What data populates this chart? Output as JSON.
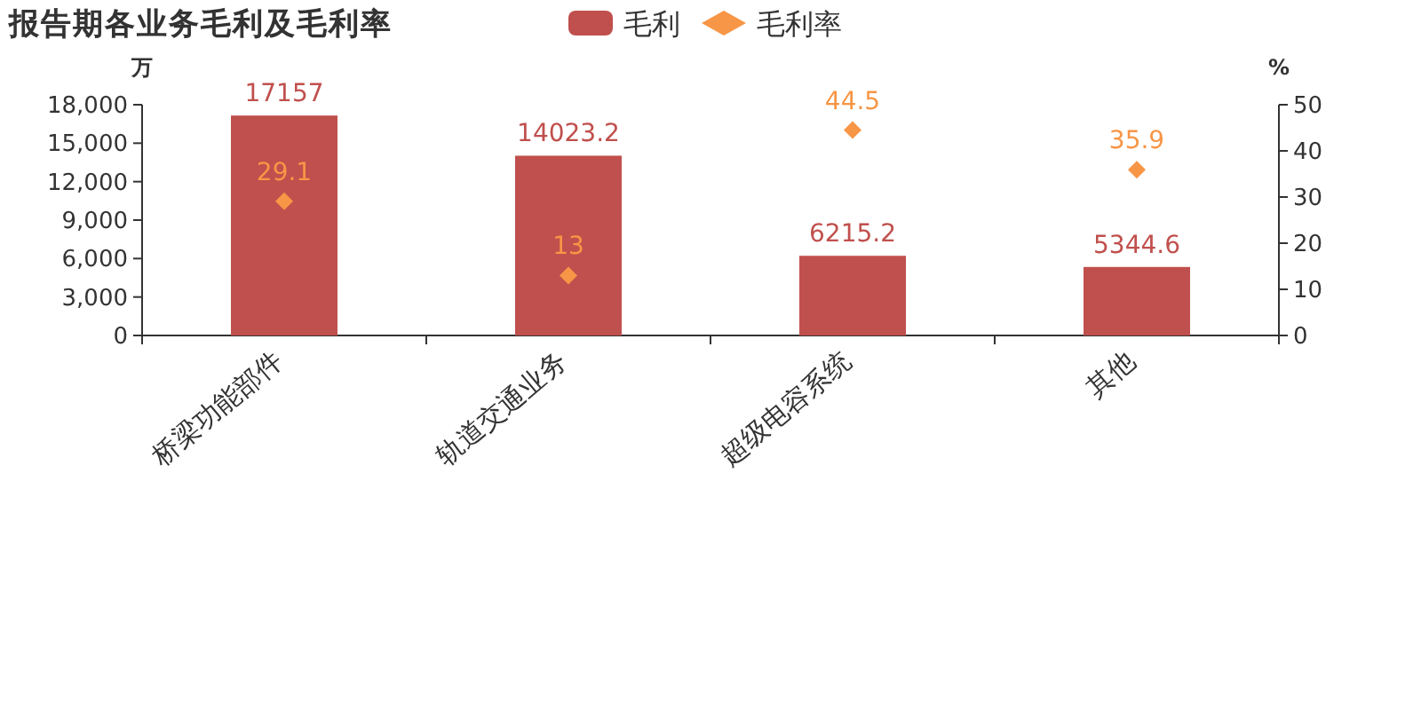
{
  "chart_data": {
    "type": "bar",
    "title": "报告期各业务毛利及毛利率",
    "categories": [
      "桥梁功能部件",
      "轨道交通业务",
      "超级电容系统",
      "其他"
    ],
    "series": [
      {
        "name": "毛利",
        "color": "#c0504d",
        "values": [
          17157,
          14023.2,
          6215.2,
          5344.6
        ]
      },
      {
        "name": "毛利率",
        "type": "scatter",
        "axis": "y2",
        "color": "#f79646",
        "values": [
          29.1,
          13,
          44.5,
          35.9
        ]
      }
    ],
    "ylabel": "万",
    "y2label": "%",
    "ylim": [
      0,
      18000
    ],
    "yticks": [
      0,
      {
        "value": 3000,
        "label": "3,000"
      },
      {
        "value": 6000,
        "label": "6,000"
      },
      {
        "value": 9000,
        "label": "9,000"
      },
      {
        "value": 12000,
        "label": "12,000"
      },
      {
        "value": 15000,
        "label": "15,000"
      },
      {
        "value": 18000,
        "label": "18,000"
      }
    ],
    "y2lim": [
      0,
      50
    ],
    "y2ticks": [
      0,
      10,
      20,
      30,
      40,
      50
    ],
    "data_labels": true,
    "legend": "top",
    "marker": "diamond",
    "grid": false
  }
}
